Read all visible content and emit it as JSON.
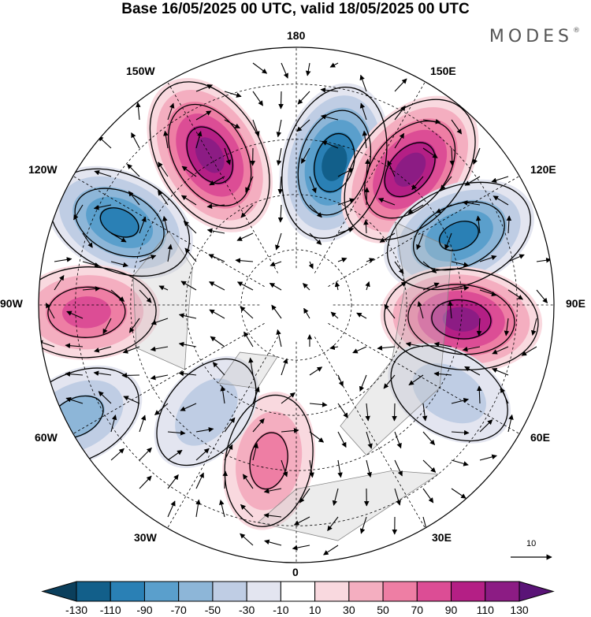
{
  "title": "Base 16/05/2025 00 UTC, valid 18/05/2025 00 UTC",
  "brand": "MODES",
  "brand_mark": "®",
  "longitude_labels": {
    "lon_180": "180",
    "lon_150e": "150E",
    "lon_120e": "120E",
    "lon_90e": "90E",
    "lon_60e": "60E",
    "lon_30e": "30E",
    "lon_0": "0",
    "lon_30w": "30W",
    "lon_60w": "60W",
    "lon_90w": "90W",
    "lon_120w": "120W",
    "lon_150w": "150W"
  },
  "vector_scale_label": "10",
  "colorbar": {
    "labels": [
      "-130",
      "-110",
      "-90",
      "-70",
      "-50",
      "-30",
      "-10",
      "10",
      "30",
      "50",
      "70",
      "90",
      "110",
      "130"
    ],
    "colors": [
      "#0b3f5c",
      "#125f8a",
      "#2a80b5",
      "#5a9fcc",
      "#8db6d8",
      "#bfcde4",
      "#e3e5f0",
      "#ffffff",
      "#f9d9df",
      "#f4aec0",
      "#ee7ea4",
      "#dc4d95",
      "#b41f85",
      "#8c1c84",
      "#5a1477"
    ]
  },
  "anomaly_centers": [
    {
      "lon": 165,
      "lat": 50,
      "value": -110
    },
    {
      "lon": -150,
      "lat": 43,
      "value": 120
    },
    {
      "lon": -115,
      "lat": 37,
      "value": -95
    },
    {
      "lon": 140,
      "lat": 42,
      "value": 125
    },
    {
      "lon": 113,
      "lat": 42,
      "value": -100
    },
    {
      "lon": 85,
      "lat": 45,
      "value": 110
    },
    {
      "lon": -88,
      "lat": 33,
      "value": 75
    },
    {
      "lon": -63,
      "lat": 23,
      "value": -60
    },
    {
      "lon": 60,
      "lat": 42,
      "value": -45
    },
    {
      "lon": -10,
      "lat": 47,
      "value": 60
    },
    {
      "lon": -40,
      "lat": 52,
      "value": -35
    }
  ]
}
